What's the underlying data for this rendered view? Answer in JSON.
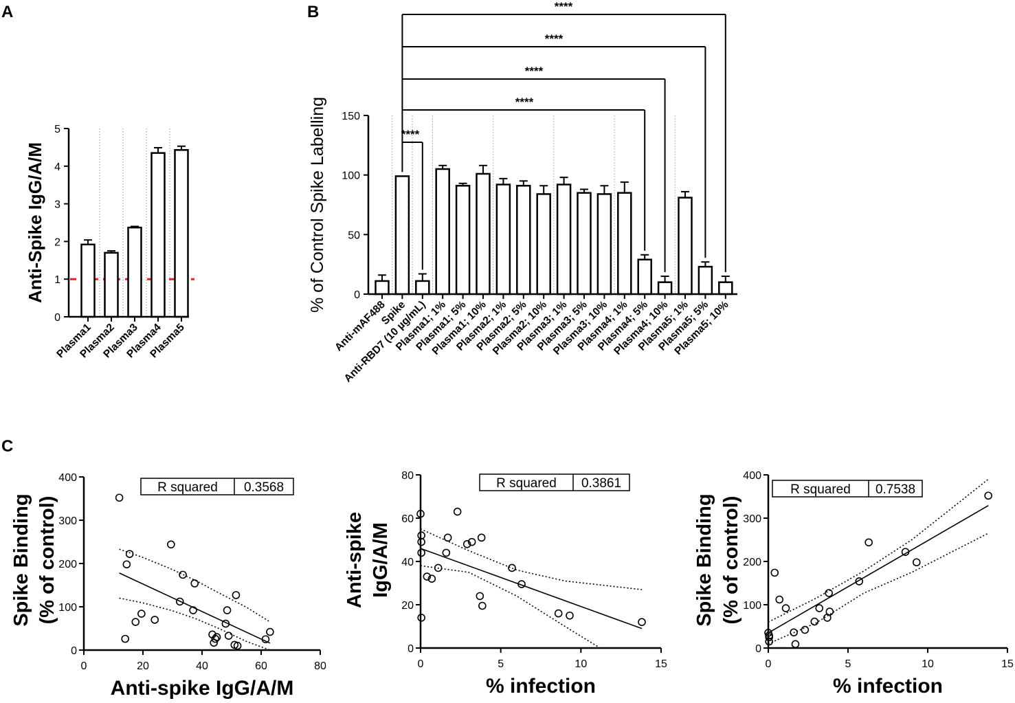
{
  "panels": {
    "a": "A",
    "b": "B",
    "c": "C"
  },
  "chart_data": [
    {
      "type": "bar",
      "panel": "A",
      "title": "",
      "ylabel": "Anti-Spike IgG/A/M",
      "xlabel": "",
      "ylim": [
        0,
        5
      ],
      "yticks": [
        "0",
        "1",
        "2",
        "3",
        "4",
        "5"
      ],
      "categories": [
        "Plasma1",
        "Plasma2",
        "Plasma3",
        "Plasma4",
        "Plasma5"
      ],
      "values": [
        1.92,
        1.7,
        2.37,
        4.35,
        4.43
      ],
      "errors": [
        0.12,
        0.05,
        0.03,
        0.14,
        0.1
      ],
      "reference_line": {
        "y": 1,
        "color": "#e8211c",
        "style": "dashed"
      }
    },
    {
      "type": "bar",
      "panel": "B",
      "title": "",
      "ylabel": "% of Control Spike Labelling",
      "xlabel": "",
      "ylim": [
        0,
        150
      ],
      "yticks": [
        "0",
        "50",
        "100",
        "150"
      ],
      "categories": [
        "Anti-mAF488",
        "Spike",
        "Anti-RBD7 (10 µg/mL)",
        "Plasma1; 1%",
        "Plasma1; 5%",
        "Plasma1; 10%",
        "Plasma2; 1%",
        "Plasma2; 5%",
        "Plasma2; 10%",
        "Plasma3; 1%",
        "Plasma3; 5%",
        "Plasma3; 10%",
        "Plasma4; 1%",
        "Plasma4; 5%",
        "Plasma4; 10%",
        "Plasma5; 1%",
        "Plasma5; 5%",
        "Plasma5; 10%"
      ],
      "values": [
        11,
        99,
        11,
        105,
        91,
        101,
        92,
        91,
        84,
        92,
        85,
        84,
        85,
        29,
        10,
        81,
        23,
        10
      ],
      "errors": [
        5,
        0,
        6,
        3,
        2,
        7,
        5,
        4,
        7,
        6,
        3,
        7,
        9,
        4,
        5,
        5,
        4,
        5
      ],
      "significance": [
        {
          "from": "Spike",
          "to": "Anti-RBD7 (10 µg/mL)",
          "label": "****"
        },
        {
          "from": "Spike",
          "to": "Plasma4; 5%",
          "label": "****"
        },
        {
          "from": "Spike",
          "to": "Plasma4; 10%",
          "label": "****"
        },
        {
          "from": "Spike",
          "to": "Plasma5; 5%",
          "label": "****"
        },
        {
          "from": "Spike",
          "to": "Plasma5; 10%",
          "label": "****"
        }
      ]
    },
    {
      "type": "scatter",
      "panel": "C1",
      "title": "",
      "xlabel": "Anti-spike IgG/A/M",
      "ylabel": [
        "Spike Binding",
        "(% of control)"
      ],
      "xlim": [
        0,
        80
      ],
      "ylim": [
        0,
        400
      ],
      "xticks": [
        "0",
        "20",
        "40",
        "60",
        "80"
      ],
      "yticks": [
        "0",
        "100",
        "200",
        "300",
        "400"
      ],
      "points": [
        [
          12,
          352
        ],
        [
          14,
          26
        ],
        [
          14.5,
          198
        ],
        [
          15.5,
          222
        ],
        [
          17.5,
          65
        ],
        [
          19.5,
          84
        ],
        [
          24,
          70
        ],
        [
          29.5,
          244
        ],
        [
          32.5,
          112
        ],
        [
          33.5,
          174
        ],
        [
          37,
          92
        ],
        [
          37.5,
          154
        ],
        [
          43.5,
          36
        ],
        [
          44,
          17
        ],
        [
          44.5,
          26
        ],
        [
          45,
          30
        ],
        [
          48,
          61
        ],
        [
          48.5,
          92
        ],
        [
          49,
          33
        ],
        [
          51,
          12
        ],
        [
          51.5,
          127
        ],
        [
          52,
          10
        ],
        [
          61.5,
          25
        ],
        [
          63,
          42
        ]
      ],
      "fit": {
        "x": [
          12,
          63
        ],
        "y": [
          178,
          16
        ]
      },
      "ci_upper": {
        "x": [
          12,
          20,
          30,
          38,
          46,
          55,
          63
        ],
        "y": [
          233,
          214,
          186,
          160,
          131,
          99,
          65
        ]
      },
      "ci_lower": {
        "x": [
          12,
          20,
          30,
          38,
          46,
          55,
          63
        ],
        "y": [
          120,
          109,
          91,
          72,
          49,
          20,
          -33
        ]
      },
      "r_squared": {
        "label": "R squared",
        "value": "0.3568"
      }
    },
    {
      "type": "scatter",
      "panel": "C2",
      "title": "",
      "xlabel": "% infection",
      "ylabel": [
        "Anti-spike",
        "IgG/A/M"
      ],
      "xlim": [
        0,
        15
      ],
      "ylim": [
        0,
        80
      ],
      "xticks": [
        "0",
        "5",
        "10",
        "15"
      ],
      "yticks": [
        "0",
        "20",
        "40",
        "60",
        "80"
      ],
      "points": [
        [
          0,
          62
        ],
        [
          0.05,
          52
        ],
        [
          0.05,
          49
        ],
        [
          0.05,
          44
        ],
        [
          0.05,
          14
        ],
        [
          0.4,
          33
        ],
        [
          0.7,
          32
        ],
        [
          1.1,
          37
        ],
        [
          1.6,
          44
        ],
        [
          1.7,
          51
        ],
        [
          2.3,
          63
        ],
        [
          2.9,
          48
        ],
        [
          3.2,
          49
        ],
        [
          3.8,
          51
        ],
        [
          3.7,
          24
        ],
        [
          3.85,
          19.5
        ],
        [
          5.7,
          37
        ],
        [
          6.3,
          29.5
        ],
        [
          8.6,
          16
        ],
        [
          9.3,
          15
        ],
        [
          13.8,
          12
        ]
      ],
      "fit": {
        "x": [
          0,
          13.8
        ],
        "y": [
          46,
          9
        ]
      },
      "ci_upper": {
        "x": [
          0,
          3,
          6,
          9,
          13.8
        ],
        "y": [
          55,
          45,
          36,
          31,
          27
        ]
      },
      "ci_lower": {
        "x": [
          0,
          3,
          6,
          9,
          11.2
        ],
        "y": [
          38,
          35,
          24,
          10,
          0
        ]
      },
      "r_squared": {
        "label": "R squared",
        "value": "0.3861"
      }
    },
    {
      "type": "scatter",
      "panel": "C3",
      "title": "",
      "xlabel": "% infection",
      "ylabel": [
        "Spike Binding",
        "(% of control)"
      ],
      "xlim": [
        0,
        15
      ],
      "ylim": [
        0,
        400
      ],
      "xticks": [
        "0",
        "5",
        "10",
        "15"
      ],
      "yticks": [
        "0",
        "100",
        "200",
        "300",
        "400"
      ],
      "points": [
        [
          0,
          35
        ],
        [
          0.05,
          25
        ],
        [
          0.05,
          15
        ],
        [
          0.05,
          29
        ],
        [
          0.4,
          174
        ],
        [
          0.7,
          112
        ],
        [
          1.1,
          92
        ],
        [
          1.6,
          36
        ],
        [
          1.7,
          9
        ],
        [
          2.3,
          42
        ],
        [
          2.9,
          61
        ],
        [
          3.2,
          92
        ],
        [
          3.8,
          127
        ],
        [
          3.7,
          70
        ],
        [
          3.85,
          84
        ],
        [
          5.7,
          154
        ],
        [
          6.3,
          244
        ],
        [
          8.6,
          222
        ],
        [
          9.3,
          198
        ],
        [
          13.8,
          352
        ]
      ],
      "fit": {
        "x": [
          0,
          13.8
        ],
        "y": [
          35,
          329
        ]
      },
      "ci_upper": {
        "x": [
          0,
          3,
          6,
          9,
          13.8
        ],
        "y": [
          60,
          115,
          178,
          250,
          390
        ]
      },
      "ci_lower": {
        "x": [
          0,
          3,
          6,
          9,
          13.8
        ],
        "y": [
          10,
          58,
          127,
          175,
          265
        ]
      },
      "r_squared": {
        "label": "R squared",
        "value": "0.7538"
      }
    }
  ]
}
